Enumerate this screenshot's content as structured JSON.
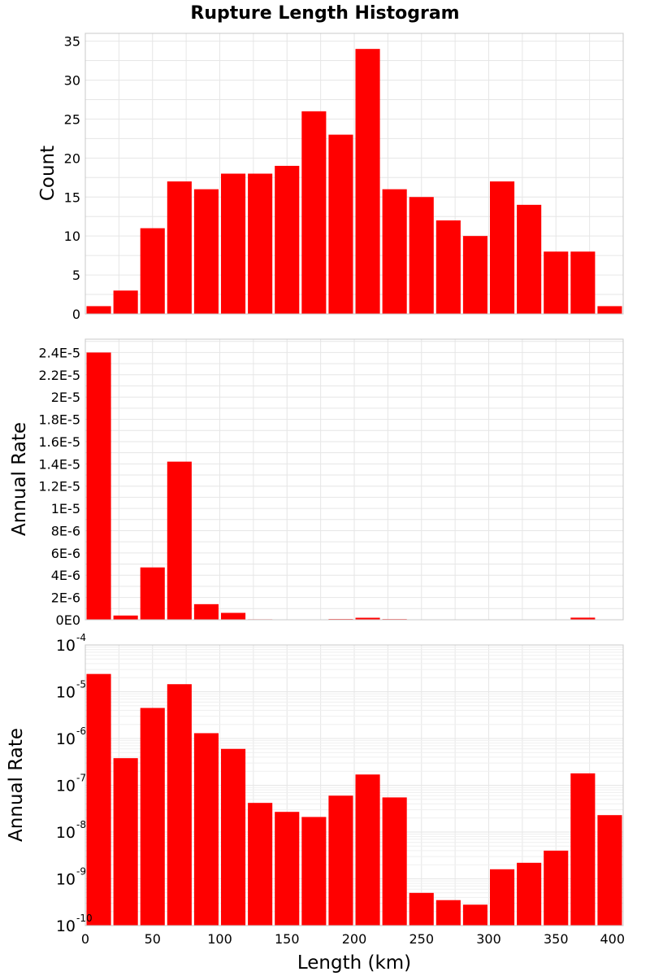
{
  "title": "Rupture Length Histogram",
  "colors": {
    "bar": "#ff0000"
  },
  "chart_data": [
    {
      "type": "bar",
      "panel": "top",
      "ylabel": "Count",
      "grid": true,
      "xlim": [
        0,
        400
      ],
      "ylim": [
        0,
        36
      ],
      "bin_width": 20,
      "x": [
        10,
        30,
        50,
        70,
        90,
        110,
        130,
        150,
        170,
        190,
        210,
        230,
        250,
        270,
        290,
        310,
        330,
        350,
        370,
        390
      ],
      "values": [
        1,
        3,
        11,
        17,
        16,
        18,
        18,
        19,
        26,
        23,
        34,
        16,
        15,
        12,
        10,
        17,
        14,
        8,
        8,
        1
      ],
      "yticks": [
        0,
        5,
        10,
        15,
        20,
        25,
        30,
        35
      ],
      "ytick_labels": [
        "0",
        "5",
        "10",
        "15",
        "20",
        "25",
        "30",
        "35"
      ]
    },
    {
      "type": "bar",
      "panel": "middle",
      "ylabel": "Annual Rate",
      "grid": true,
      "xlim": [
        0,
        400
      ],
      "ylim": [
        0,
        2.52e-05
      ],
      "bin_width": 20,
      "x": [
        10,
        30,
        50,
        70,
        90,
        110,
        130,
        150,
        170,
        190,
        210,
        230,
        250,
        270,
        290,
        310,
        330,
        350,
        370,
        390
      ],
      "values": [
        2.4e-05,
        3.8e-07,
        4.7e-06,
        1.42e-05,
        1.4e-06,
        6.2e-07,
        4.5e-08,
        3e-08,
        2.2e-08,
        6.5e-08,
        1.8e-07,
        6e-08,
        6e-10,
        4e-10,
        3e-10,
        1.7e-09,
        2.3e-09,
        4.2e-09,
        1.9e-07,
        2.5e-08
      ],
      "yticks": [
        0,
        2e-06,
        4e-06,
        6e-06,
        8e-06,
        1e-05,
        1.2e-05,
        1.4e-05,
        1.6e-05,
        1.8e-05,
        2e-05,
        2.2e-05,
        2.4e-05
      ],
      "ytick_labels": [
        "0E0",
        "2E-6",
        "4E-6",
        "6E-6",
        "8E-6",
        "1E-5",
        "1.2E-5",
        "1.4E-5",
        "1.6E-5",
        "1.8E-5",
        "2E-5",
        "2.2E-5",
        "2.4E-5"
      ]
    },
    {
      "type": "bar",
      "panel": "bottom",
      "ylabel": "Annual Rate",
      "xlabel": "Length (km)",
      "yscale": "log",
      "grid": true,
      "xlim": [
        0,
        400
      ],
      "ylim": [
        1e-10,
        0.0001
      ],
      "bin_width": 20,
      "x": [
        10,
        30,
        50,
        70,
        90,
        110,
        130,
        150,
        170,
        190,
        210,
        230,
        250,
        270,
        290,
        310,
        330,
        350,
        370,
        390
      ],
      "values": [
        2.4e-05,
        3.8e-07,
        4.5e-06,
        1.45e-05,
        1.3e-06,
        6e-07,
        4.2e-08,
        2.7e-08,
        2.1e-08,
        6e-08,
        1.7e-07,
        5.5e-08,
        5e-10,
        3.5e-10,
        2.8e-10,
        1.6e-09,
        2.2e-09,
        4e-09,
        1.8e-07,
        2.3e-08
      ],
      "yticks": [
        1e-10,
        1e-09,
        1e-08,
        1e-07,
        1e-06,
        1e-05,
        0.0001
      ],
      "ytick_base": "10",
      "ytick_exponents": [
        "-10",
        "-9",
        "-8",
        "-7",
        "-6",
        "-5",
        "-4"
      ],
      "xticks": [
        0,
        50,
        100,
        150,
        200,
        250,
        300,
        350,
        400
      ],
      "xtick_labels": [
        "0",
        "50",
        "100",
        "150",
        "200",
        "250",
        "300",
        "350",
        "400"
      ]
    }
  ]
}
